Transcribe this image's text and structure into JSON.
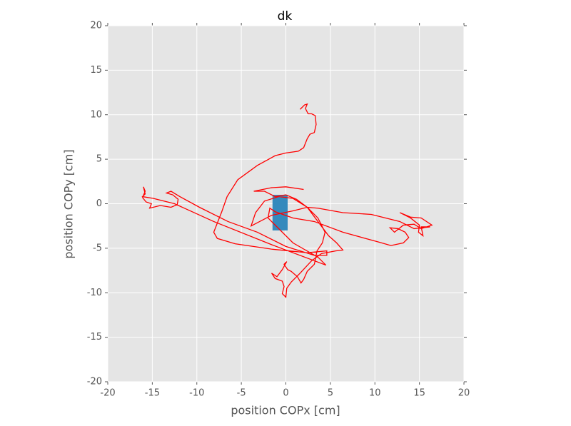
{
  "chart_data": {
    "type": "line",
    "title": "dk",
    "xlabel": "position COPx [cm]",
    "ylabel": "position COPy [cm]",
    "xlim": [
      -20,
      20
    ],
    "ylim": [
      -20,
      20
    ],
    "xticks": [
      -20,
      -15,
      -10,
      -5,
      0,
      5,
      10,
      15,
      20
    ],
    "yticks": [
      -20,
      -15,
      -10,
      -5,
      0,
      5,
      10,
      15,
      20
    ],
    "grid": true,
    "background": "#e5e5e5",
    "box": {
      "x": [
        -1.5,
        0.2
      ],
      "y": [
        -3,
        1
      ],
      "color": "#348abd"
    },
    "series": [
      {
        "color": "#ff0000",
        "x": [
          1.6,
          2.1,
          2.4,
          2.2,
          2.5,
          2.9,
          3.3,
          3.4,
          3.2,
          2.7,
          2.4,
          2.0,
          1.4,
          0.0,
          -1.2,
          -3.2,
          -5.4,
          -6.6,
          -7.2,
          -8.1,
          -7.7,
          -5.7,
          -1.6,
          2.4,
          4.6,
          4.6,
          3.2,
          0.0,
          -3.2,
          -6.5,
          -9.7,
          -11.9,
          -12.9,
          -13.4,
          -12.7,
          -12.1,
          -12.2,
          -12.9,
          -14.1,
          -15.3,
          -15.1,
          -15.7,
          -16.1,
          -15.8,
          -16.0,
          -15.8,
          -16.1,
          -14.9,
          -12.5,
          -8.1,
          -1.6,
          4.5,
          3.6,
          0.8,
          -2.0,
          -1.8,
          -1.2,
          0.8,
          3.2,
          6.4,
          10.4,
          11.8,
          13.2,
          13.8,
          13.4,
          12.6,
          11.7,
          12.2,
          13.2,
          14.4,
          15.2,
          16.4,
          15.2,
          14.0,
          12.8,
          14.0,
          15.0,
          14.9,
          15.4,
          15.2,
          16.2,
          14.4,
          12.8,
          9.6,
          6.4,
          3.6,
          2.4,
          0.8,
          -1.6,
          -3.9,
          -3.4,
          -2.4,
          -0.8,
          0.8,
          2.4,
          3.6,
          4.4,
          4.1,
          3.5,
          3.2,
          2.4,
          2.0,
          1.7,
          1.3,
          0.6,
          0.2,
          -0.2,
          0.1,
          -0.4,
          -1.0,
          -1.6,
          -1.2,
          -0.4,
          -0.2,
          -0.4,
          0.0,
          0.1,
          0.6,
          1.6,
          2.9,
          4.0,
          5.6,
          6.4,
          5.7,
          4.8,
          3.6,
          2.4,
          1.2,
          0.0,
          -1.2,
          -2.4,
          -3.6,
          -1.6,
          0.0,
          2.0
        ],
        "values": [
          10.6,
          11.1,
          11.2,
          10.7,
          10.1,
          10.1,
          9.9,
          8.9,
          8.0,
          7.8,
          7.3,
          6.3,
          5.9,
          5.7,
          5.4,
          4.3,
          2.7,
          0.8,
          -0.9,
          -3.2,
          -3.9,
          -4.5,
          -5.1,
          -5.5,
          -5.3,
          -5.8,
          -5.8,
          -4.8,
          -3.2,
          -2.0,
          -0.4,
          0.8,
          1.4,
          1.2,
          1.0,
          0.5,
          -0.1,
          -0.4,
          -0.2,
          -0.5,
          0.0,
          0.2,
          0.7,
          1.4,
          1.9,
          1.1,
          0.8,
          0.6,
          0.0,
          -2.0,
          -4.6,
          -6.9,
          -6.0,
          -4.4,
          -1.6,
          -0.5,
          -0.9,
          -1.6,
          -2.0,
          -3.2,
          -4.3,
          -4.7,
          -4.4,
          -3.8,
          -3.2,
          -2.8,
          -2.7,
          -3.2,
          -2.4,
          -2.3,
          -2.8,
          -2.4,
          -1.6,
          -1.5,
          -1.0,
          -1.6,
          -2.4,
          -3.2,
          -3.6,
          -2.6,
          -2.6,
          -2.8,
          -2.0,
          -1.2,
          -1.0,
          -0.5,
          -0.4,
          -0.8,
          -1.3,
          -2.5,
          -1.0,
          0.3,
          0.8,
          0.6,
          -0.4,
          -1.6,
          -3.2,
          -4.4,
          -5.3,
          -6.8,
          -7.6,
          -8.5,
          -8.9,
          -8.2,
          -7.6,
          -7.4,
          -6.8,
          -6.5,
          -7.4,
          -8.2,
          -7.8,
          -8.4,
          -8.7,
          -9.3,
          -10.1,
          -10.5,
          -9.5,
          -8.8,
          -7.8,
          -6.4,
          -5.6,
          -5.3,
          -5.2,
          -4.4,
          -3.6,
          -2.0,
          -0.4,
          0.5,
          1.0,
          0.8,
          1.4,
          1.4,
          1.8,
          1.9,
          1.6
        ]
      }
    ]
  }
}
